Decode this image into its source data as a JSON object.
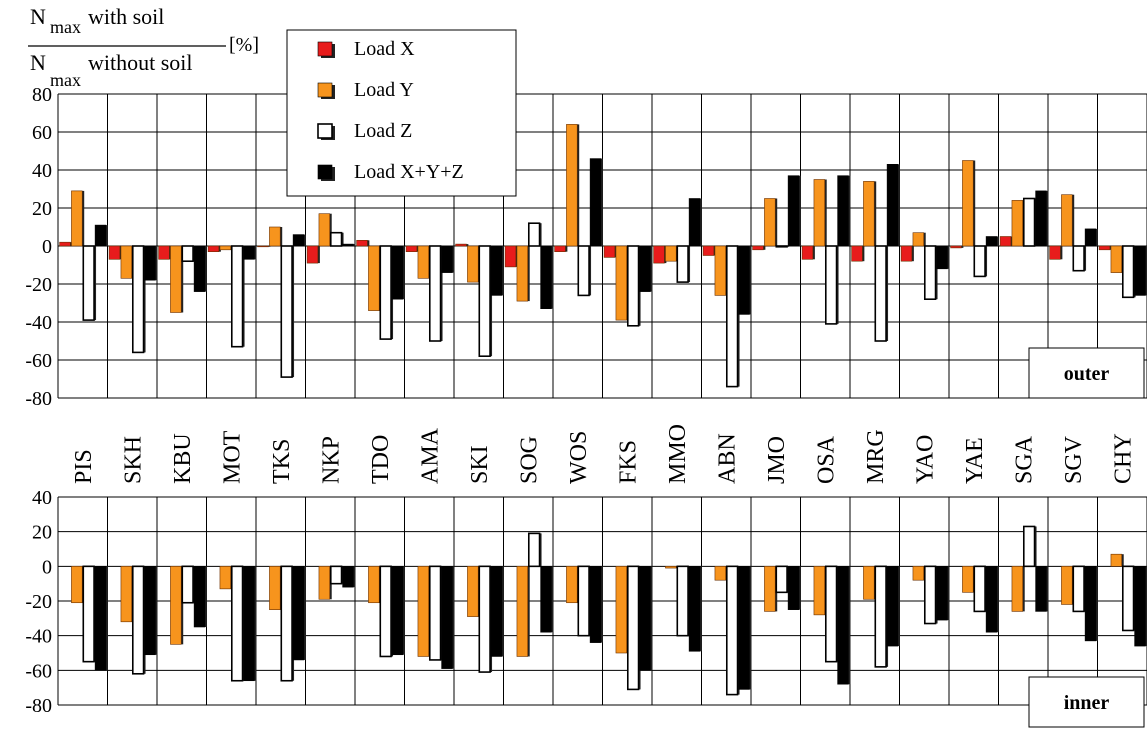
{
  "ylabel": {
    "num_sym": "N",
    "num_sub": "max",
    "num_text": "with soil",
    "den_sym": "N",
    "den_sub": "max",
    "den_text": "without soil",
    "unit": "[%]"
  },
  "colors": {
    "x": "#e81c1c",
    "y": "#f7941d",
    "z": "#ffffff",
    "xyz": "#000000"
  },
  "legend": [
    "Load X",
    "Load Y",
    "Load Z",
    "Load X+Y+Z"
  ],
  "chart_data": [
    {
      "type": "bar",
      "panel_label": "outer",
      "ylim": [
        -80,
        80
      ],
      "yticks": [
        -80,
        -60,
        -40,
        -20,
        0,
        20,
        40,
        60,
        80
      ],
      "categories": [
        "PIS",
        "SKH",
        "KBU",
        "MOT",
        "TKS",
        "NKP",
        "TDO",
        "AMA",
        "SKI",
        "SOG",
        "WOS",
        "FKS",
        "MMO",
        "ABN",
        "JMO",
        "OSA",
        "MRG",
        "YAO",
        "YAE",
        "SGA",
        "SGV",
        "CHY"
      ],
      "series": [
        {
          "name": "Load X",
          "values": [
            2,
            -7,
            -7,
            -3,
            0,
            -9,
            3,
            -3,
            1,
            -11,
            -3,
            -6,
            -9,
            -5,
            -2,
            -7,
            -8,
            -8,
            -1,
            5,
            -7,
            -2
          ]
        },
        {
          "name": "Load Y",
          "values": [
            29,
            -17,
            -35,
            -2,
            10,
            17,
            -34,
            -17,
            -19,
            -29,
            64,
            -39,
            -8,
            -26,
            25,
            35,
            34,
            7,
            45,
            24,
            27,
            -14
          ]
        },
        {
          "name": "Load Z",
          "values": [
            -39,
            -56,
            -8,
            -53,
            -69,
            7,
            -49,
            -50,
            -58,
            12,
            -26,
            -42,
            -19,
            -74,
            0,
            -41,
            -50,
            -28,
            -16,
            25,
            -13,
            -27
          ]
        },
        {
          "name": "Load X+Y+Z",
          "values": [
            11,
            -18,
            -24,
            -7,
            6,
            1,
            -28,
            -14,
            -26,
            -33,
            46,
            -24,
            25,
            -36,
            37,
            37,
            43,
            -12,
            5,
            29,
            9,
            -26
          ]
        }
      ]
    },
    {
      "type": "bar",
      "panel_label": "inner",
      "ylim": [
        -80,
        40
      ],
      "yticks": [
        -80,
        -60,
        -40,
        -20,
        0,
        20,
        40
      ],
      "categories": [
        "PIS",
        "SKH",
        "KBU",
        "MOT",
        "TKS",
        "NKP",
        "TDO",
        "AMA",
        "SKI",
        "SOG",
        "WOS",
        "FKS",
        "MMO",
        "ABN",
        "JMO",
        "OSA",
        "MRG",
        "YAO",
        "YAE",
        "SGA",
        "SGV",
        "CHY"
      ],
      "series": [
        {
          "name": "Load Y",
          "values": [
            -21,
            -32,
            -45,
            -13,
            -25,
            -19,
            -21,
            -52,
            -29,
            -52,
            -21,
            -50,
            -1,
            -8,
            -26,
            -28,
            -19,
            -8,
            -15,
            -26,
            -22,
            7
          ]
        },
        {
          "name": "Load Z",
          "values": [
            -55,
            -62,
            -21,
            -66,
            -66,
            -10,
            -52,
            -54,
            -61,
            19,
            -40,
            -71,
            -40,
            -74,
            -15,
            -55,
            -58,
            -33,
            -26,
            23,
            -26,
            -37
          ]
        },
        {
          "name": "Load X+Y+Z",
          "values": [
            -60,
            -51,
            -35,
            -66,
            -54,
            -12,
            -51,
            -59,
            -52,
            -38,
            -44,
            -60,
            -49,
            -71,
            -25,
            -68,
            -46,
            -31,
            -38,
            -26,
            -43,
            -46
          ]
        }
      ]
    }
  ]
}
